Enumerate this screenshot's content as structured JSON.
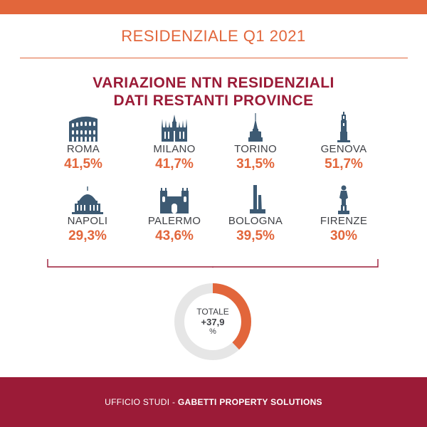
{
  "header": {
    "title": "RESIDENZIALE Q1 2021"
  },
  "main": {
    "title_line1": "VARIAZIONE NTN RESIDENZIALI",
    "title_line2": "DATI RESTANTI PROVINCE"
  },
  "cities": [
    {
      "name": "ROMA",
      "change": "41,5%",
      "icon": "colosseum-icon"
    },
    {
      "name": "MILANO",
      "change": "41,7%",
      "icon": "duomo-milano-icon"
    },
    {
      "name": "TORINO",
      "change": "31,5%",
      "icon": "mole-antonelliana-icon"
    },
    {
      "name": "GENOVA",
      "change": "51,7%",
      "icon": "lanterna-icon"
    },
    {
      "name": "NAPOLI",
      "change": "29,3%",
      "icon": "san-francesco-di-paola-icon"
    },
    {
      "name": "PALERMO",
      "change": "43,6%",
      "icon": "palermo-cathedral-icon"
    },
    {
      "name": "BOLOGNA",
      "change": "39,5%",
      "icon": "due-torri-icon"
    },
    {
      "name": "FIRENZE",
      "change": "30%",
      "icon": "david-statue-icon"
    }
  ],
  "total": {
    "label": "TOTALE",
    "value": "+37,9",
    "unit": "%",
    "percent": 37.9
  },
  "footer": {
    "prefix": "UFFICIO STUDI - ",
    "brand": "GABETTI PROPERTY SOLUTIONS"
  },
  "colors": {
    "accent": "#e2663b",
    "brand": "#9b1b37",
    "icon": "#3d5a73",
    "text": "#3f4146",
    "donut_track": "#e6e6e6"
  }
}
